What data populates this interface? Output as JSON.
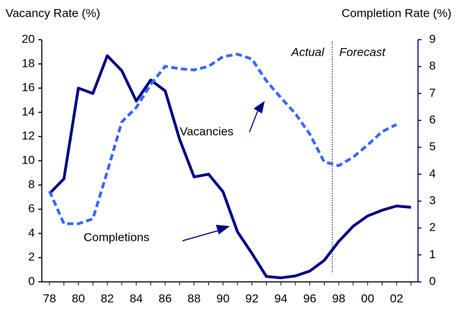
{
  "chart_data": {
    "type": "line",
    "y_label": "Vacancy Rate (%)",
    "y2_label": "Completion Rate (%)",
    "categories": [
      "78",
      null,
      "80",
      null,
      "82",
      null,
      "84",
      null,
      "86",
      null,
      "88",
      null,
      "90",
      null,
      "92",
      null,
      "94",
      null,
      "96",
      null,
      "98",
      null,
      "00",
      null,
      "02",
      null
    ],
    "series": [
      {
        "name": "Completions",
        "color": "#000080",
        "axis": "y2",
        "values": [
          3.28,
          3.83,
          7.2,
          7.0,
          8.4,
          7.85,
          6.72,
          7.5,
          7.1,
          5.3,
          3.9,
          4.0,
          3.35,
          1.86,
          1.06,
          0.2,
          0.15,
          0.22,
          0.4,
          0.8,
          1.5,
          2.07,
          2.45,
          2.66,
          2.82,
          2.77
        ]
      },
      {
        "name": "Vacancies",
        "color": "#3366ff",
        "values": [
          7.5,
          4.8,
          4.8,
          5.2,
          9.1,
          13.2,
          14.4,
          16.3,
          17.8,
          17.6,
          17.5,
          17.8,
          18.6,
          18.8,
          18.4,
          16.6,
          15.2,
          13.9,
          12.2,
          9.9,
          9.6,
          10.3,
          11.3,
          12.4,
          13.0,
          null
        ]
      }
    ],
    "annotations": [
      "Actual",
      "Forecast"
    ],
    "ylim": [
      0,
      20
    ],
    "yticks": [
      0,
      2,
      4,
      6,
      8,
      10,
      12,
      14,
      16,
      18,
      20
    ],
    "y2lim": [
      0,
      9
    ],
    "y2ticks": [
      0,
      1,
      2,
      3,
      4,
      5,
      6,
      7,
      8,
      9
    ],
    "grid": false
  }
}
